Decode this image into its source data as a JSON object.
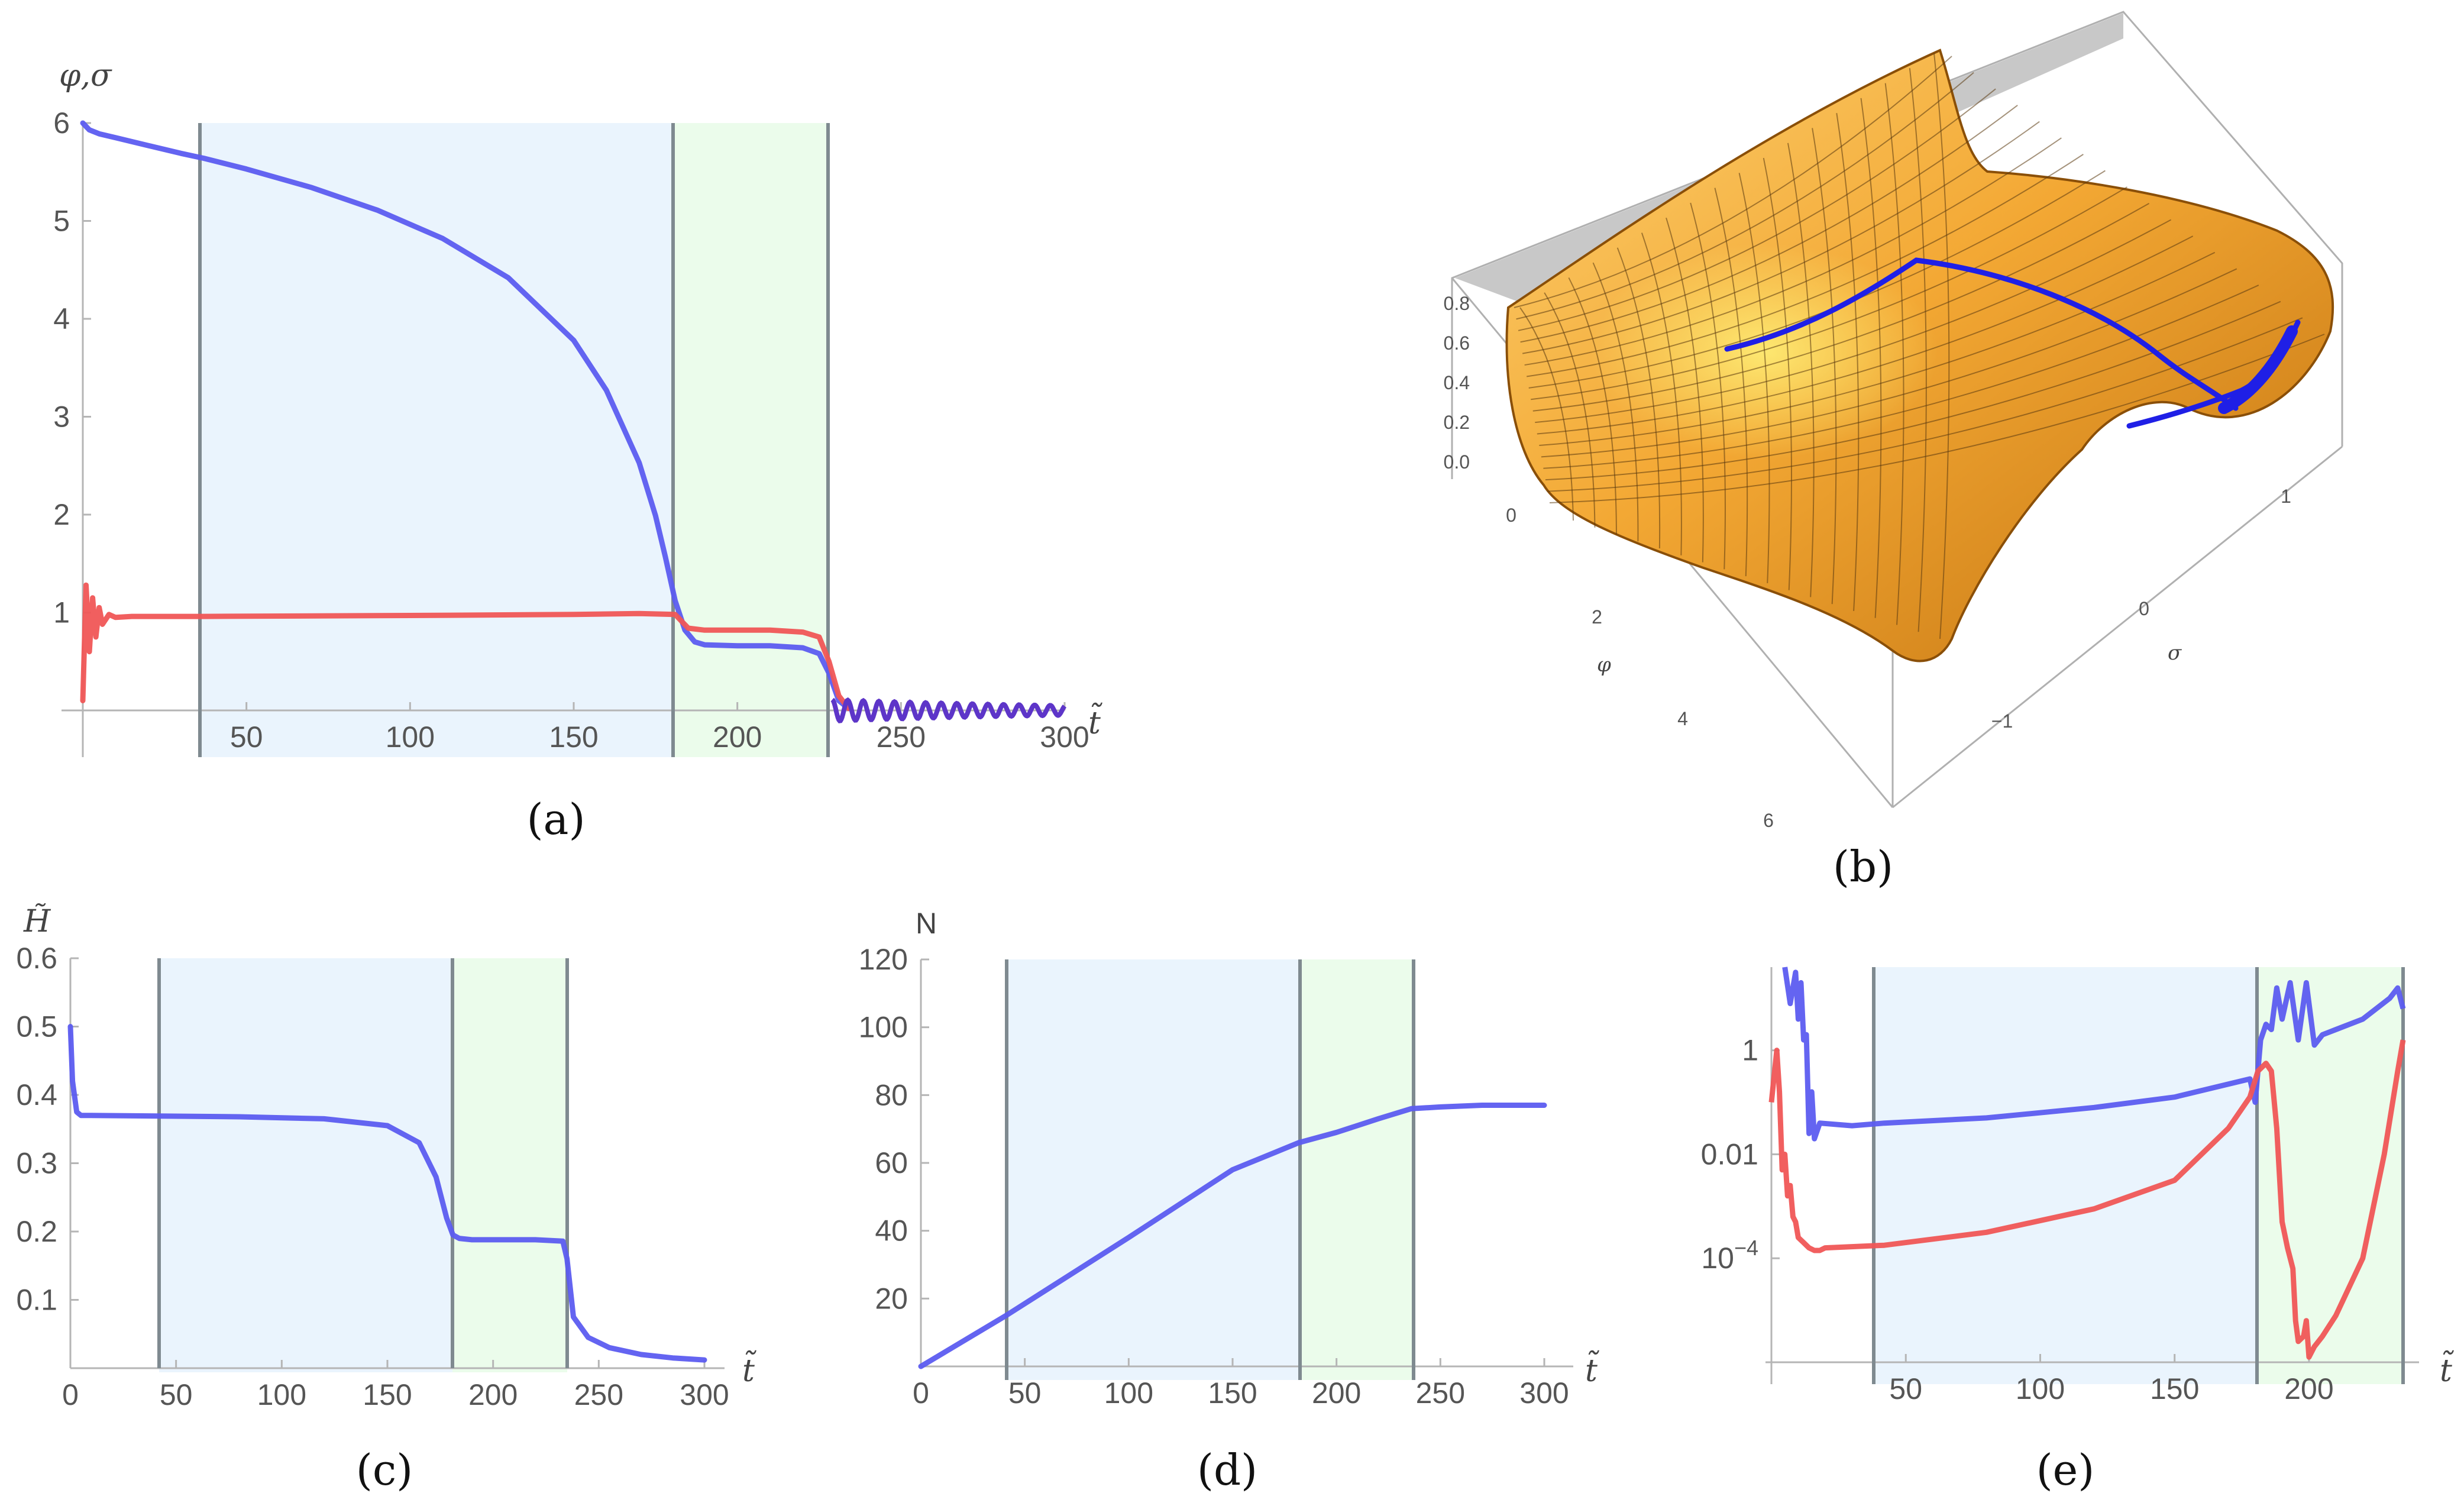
{
  "colors": {
    "blue_curve": "#5c5cf0",
    "red_curve": "#f05656",
    "deep_blue": "#1f1fe6",
    "blue_band": "#eaf4fd",
    "green_band": "#ebfceb",
    "guide": "#7f8a90",
    "axis": "#b5b5b5",
    "surface_light": "#f5b640",
    "surface_dark": "#b96a10"
  },
  "chart_data": [
    {
      "id": "a",
      "type": "line",
      "caption": "(a)",
      "ylabel": "φ,σ",
      "xlabel": "t̃",
      "xlim": [
        0,
        300
      ],
      "ylim": [
        0,
        6
      ],
      "xticks": [
        "50",
        "100",
        "150",
        "200",
        "250",
        "300"
      ],
      "yticks": [
        "1",
        "2",
        "3",
        "4",
        "5",
        "6"
      ],
      "phase_lines": [
        37,
        181,
        228
      ],
      "series": [
        {
          "name": "φ",
          "color": "#5c5cf0",
          "x": [
            0,
            2,
            5,
            10,
            20,
            30,
            37,
            50,
            70,
            90,
            110,
            130,
            150,
            160,
            170,
            175,
            178,
            181,
            184,
            187,
            190,
            200,
            210,
            220,
            225,
            228,
            231,
            234
          ],
          "y": [
            6.0,
            5.93,
            5.89,
            5.85,
            5.77,
            5.69,
            5.64,
            5.53,
            5.34,
            5.11,
            4.82,
            4.42,
            3.78,
            3.27,
            2.53,
            1.99,
            1.57,
            1.12,
            0.82,
            0.7,
            0.67,
            0.66,
            0.66,
            0.64,
            0.58,
            0.38,
            0.1,
            0.02
          ]
        },
        {
          "name": "σ",
          "color": "#f05656",
          "x": [
            0,
            1,
            2,
            3,
            4,
            5,
            6,
            8,
            10,
            15,
            37,
            100,
            150,
            170,
            181,
            185,
            190,
            200,
            210,
            220,
            225,
            228,
            231,
            234
          ],
          "y": [
            0.1,
            1.28,
            0.6,
            1.15,
            0.75,
            1.05,
            0.88,
            0.98,
            0.95,
            0.96,
            0.96,
            0.97,
            0.98,
            0.99,
            0.98,
            0.84,
            0.82,
            0.82,
            0.82,
            0.8,
            0.75,
            0.5,
            0.15,
            0.02
          ]
        },
        {
          "name": "oscillation",
          "color": "#5d35c8",
          "x_start": 229,
          "x_end": 300
        }
      ]
    },
    {
      "id": "b",
      "type": "surface3d",
      "caption": "(b)",
      "xlabel": "φ",
      "ylabel": "σ",
      "zticks": [
        "0.0",
        "0.2",
        "0.4",
        "0.6",
        "0.8"
      ],
      "xticks": [
        "0",
        "2",
        "4",
        "6"
      ],
      "yticks": [
        "1",
        "0",
        "−1"
      ]
    },
    {
      "id": "c",
      "type": "line",
      "caption": "(c)",
      "ylabel": "H̃",
      "xlabel": "t̃",
      "xlim": [
        0,
        300
      ],
      "ylim": [
        0,
        0.6
      ],
      "xticks": [
        "0",
        "50",
        "100",
        "150",
        "200",
        "250",
        "300"
      ],
      "yticks": [
        "0.1",
        "0.2",
        "0.3",
        "0.4",
        "0.5",
        "0.6"
      ],
      "phase_lines": [
        42,
        181,
        235
      ],
      "series": [
        {
          "name": "H",
          "color": "#5c5cf0",
          "x": [
            0,
            1,
            3,
            5,
            10,
            42,
            80,
            120,
            150,
            165,
            173,
            178,
            181,
            184,
            190,
            200,
            220,
            233,
            235,
            238,
            245,
            255,
            270,
            285,
            300
          ],
          "y": [
            0.5,
            0.42,
            0.375,
            0.37,
            0.37,
            0.369,
            0.368,
            0.365,
            0.355,
            0.33,
            0.28,
            0.22,
            0.195,
            0.19,
            0.188,
            0.188,
            0.188,
            0.186,
            0.16,
            0.075,
            0.045,
            0.03,
            0.02,
            0.015,
            0.012
          ]
        }
      ]
    },
    {
      "id": "d",
      "type": "line",
      "caption": "(d)",
      "ylabel": "N",
      "xlabel": "t̃",
      "xlim": [
        0,
        300
      ],
      "ylim": [
        0,
        120
      ],
      "xticks": [
        "0",
        "50",
        "100",
        "150",
        "200",
        "250",
        "300"
      ],
      "yticks": [
        "20",
        "40",
        "60",
        "80",
        "100",
        "120"
      ],
      "phase_lines": [
        41,
        182,
        236
      ],
      "series": [
        {
          "name": "N",
          "color": "#5c5cf0",
          "x": [
            0,
            41,
            100,
            150,
            182,
            200,
            220,
            236,
            250,
            270,
            300
          ],
          "y": [
            0,
            15,
            38,
            58,
            66,
            69,
            73,
            76,
            76.5,
            77,
            77
          ]
        }
      ]
    },
    {
      "id": "e",
      "type": "line",
      "caption": "(e)",
      "scale": "log",
      "xlabel": "t̃",
      "xlim": [
        0,
        235
      ],
      "ylim_log10": [
        -6,
        1.6
      ],
      "xticks": [
        "50",
        "100",
        "150",
        "200"
      ],
      "yticks": [
        {
          "mantissa": "1",
          "log10": 0
        },
        {
          "mantissa": "0.01",
          "log10": -2
        },
        {
          "mantissa": "10",
          "exp": "−4",
          "log10": -4
        }
      ],
      "phase_lines": [
        42,
        182,
        235
      ],
      "series": [
        {
          "name": "blue",
          "color": "#5c5cf0",
          "x": [
            5,
            7,
            9,
            10,
            11,
            12,
            13,
            14,
            15,
            16,
            18,
            30,
            42,
            80,
            120,
            150,
            170,
            178,
            180,
            182,
            184,
            186,
            188,
            190,
            193,
            196,
            199,
            202,
            205,
            210,
            220,
            230,
            233,
            235
          ],
          "y_log10": [
            1.6,
            0.9,
            1.5,
            0.6,
            1.3,
            0.2,
            0.3,
            -1.6,
            -0.8,
            -1.7,
            -1.4,
            -1.45,
            -1.4,
            -1.3,
            -1.1,
            -0.9,
            -0.65,
            -0.55,
            -1.0,
            0.2,
            0.5,
            0.4,
            1.2,
            0.6,
            1.3,
            0.2,
            1.3,
            0.1,
            0.3,
            0.4,
            0.6,
            1.0,
            1.2,
            0.8
          ]
        },
        {
          "name": "red",
          "color": "#f05656",
          "x": [
            0,
            2,
            3,
            4,
            5,
            6,
            7,
            8,
            9,
            10,
            12,
            14,
            16,
            18,
            20,
            42,
            80,
            120,
            150,
            170,
            178,
            181,
            184,
            186,
            188,
            190,
            192,
            194,
            195,
            196,
            198,
            199,
            200,
            202,
            205,
            210,
            220,
            228,
            233,
            235
          ],
          "y_log10": [
            -1.0,
            0.0,
            -0.8,
            -2.3,
            -2.0,
            -2.8,
            -2.6,
            -3.2,
            -3.3,
            -3.6,
            -3.7,
            -3.8,
            -3.85,
            -3.85,
            -3.8,
            -3.75,
            -3.5,
            -3.05,
            -2.5,
            -1.5,
            -0.9,
            -0.4,
            -0.25,
            -0.4,
            -1.5,
            -3.3,
            -3.8,
            -4.2,
            -5.2,
            -5.6,
            -5.5,
            -5.2,
            -5.9,
            -5.7,
            -5.5,
            -5.1,
            -4.0,
            -2.0,
            -0.4,
            0.2
          ]
        }
      ]
    }
  ]
}
